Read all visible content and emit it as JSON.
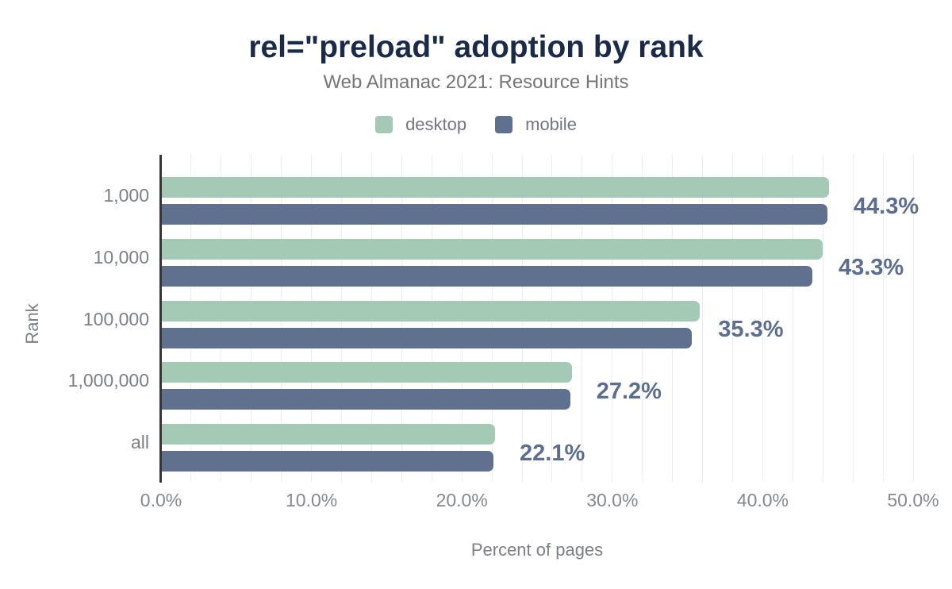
{
  "header": {
    "title": "rel=\"preload\" adoption by rank",
    "subtitle": "Web Almanac 2021: Resource Hints"
  },
  "legend": [
    {
      "label": "desktop",
      "color": "#a4c9b5"
    },
    {
      "label": "mobile",
      "color": "#5f718e"
    }
  ],
  "chart_data": {
    "type": "bar",
    "orientation": "horizontal",
    "title": "rel=\"preload\" adoption by rank",
    "subtitle": "Web Almanac 2021: Resource Hints",
    "categories": [
      "1,000",
      "10,000",
      "100,000",
      "1,000,000",
      "all"
    ],
    "series": [
      {
        "name": "desktop",
        "color": "#a4c9b5",
        "values": [
          44.4,
          44.0,
          35.8,
          27.3,
          22.2
        ]
      },
      {
        "name": "mobile",
        "color": "#5f718e",
        "values": [
          44.3,
          43.3,
          35.3,
          27.2,
          22.1
        ]
      }
    ],
    "value_labels": [
      "44.3%",
      "43.3%",
      "35.3%",
      "27.2%",
      "22.1%"
    ],
    "value_label_series": "mobile",
    "xlabel": "Percent of pages",
    "ylabel": "Rank",
    "xlim": [
      0,
      50
    ],
    "x_ticks": [
      "0.0%",
      "10.0%",
      "20.0%",
      "30.0%",
      "40.0%",
      "50.0%"
    ],
    "x_tick_values": [
      0,
      10,
      20,
      30,
      40,
      50
    ],
    "grid": "vertical minor gridlines every 2%",
    "legend_position": "top",
    "colors": {
      "title": "#1a2b49",
      "subtitle": "#757575",
      "annotation": "#5b6e8f",
      "gridline": "#ededf1",
      "axis_line": "#35353b",
      "background": "#ffffff"
    }
  }
}
